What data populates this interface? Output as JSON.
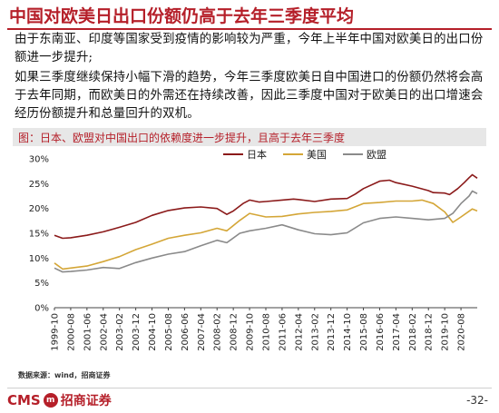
{
  "slide": {
    "title": "中国对欧美日出口份额仍高于去年三季度平均",
    "paragraph1": "由于东南亚、印度等国家受到疫情的影响较为严重，今年上半年中国对欧美日的出口份额进一步提升;",
    "paragraph2": "如果三季度继续保持小幅下滑的趋势，今年三季度欧美日自中国进口的份额仍然将会高于去年同期，而欧美日的外需还在持续改善，因此三季度中国对于欧美日的出口增速会经历份额提升和总量回升的双机。",
    "caption": "图：日本、欧盟对中国出口的依赖度进一步提升，且高于去年三季度",
    "source": "数据来源：wind，招商证券",
    "page_number": "-32-",
    "logo_latin": "CMS",
    "logo_mark": "m",
    "logo_cn": "招商证券"
  },
  "colors": {
    "brand": "#b51f29",
    "japan": "#8b1a1a",
    "usa": "#d4a637",
    "eu": "#8a8a8a"
  },
  "chart_data": {
    "type": "line",
    "title": "",
    "xlabel": "",
    "ylabel": "",
    "ylim": [
      0,
      0.3
    ],
    "y_ticks": [
      "0%",
      "5%",
      "10%",
      "15%",
      "20%",
      "25%",
      "30%"
    ],
    "x_range": [
      "1999-10",
      "2021-06"
    ],
    "x_ticks": [
      "1999-10",
      "2000-08",
      "2001-06",
      "2002-04",
      "2003-02",
      "2003-12",
      "2004-10",
      "2005-08",
      "2006-06",
      "2007-04",
      "2008-02",
      "2008-12",
      "2009-10",
      "2010-08",
      "2011-06",
      "2012-04",
      "2013-02",
      "2013-12",
      "2014-10",
      "2015-08",
      "2016-06",
      "2017-04",
      "2018-02",
      "2018-12",
      "2019-10",
      "2020-08"
    ],
    "legend_position": "top-right",
    "grid": false,
    "series": [
      {
        "name": "日本",
        "color": "#8b1a1a",
        "points": [
          [
            "1999-10",
            0.146
          ],
          [
            "2000-03",
            0.14
          ],
          [
            "2000-08",
            0.141
          ],
          [
            "2001-06",
            0.146
          ],
          [
            "2002-04",
            0.153
          ],
          [
            "2003-02",
            0.162
          ],
          [
            "2003-12",
            0.172
          ],
          [
            "2004-10",
            0.186
          ],
          [
            "2005-08",
            0.196
          ],
          [
            "2006-06",
            0.201
          ],
          [
            "2007-04",
            0.203
          ],
          [
            "2008-02",
            0.2
          ],
          [
            "2008-08",
            0.188
          ],
          [
            "2008-12",
            0.195
          ],
          [
            "2009-06",
            0.21
          ],
          [
            "2009-10",
            0.217
          ],
          [
            "2010-04",
            0.213
          ],
          [
            "2010-08",
            0.214
          ],
          [
            "2011-06",
            0.217
          ],
          [
            "2012-01",
            0.219
          ],
          [
            "2012-04",
            0.218
          ],
          [
            "2013-02",
            0.214
          ],
          [
            "2013-12",
            0.219
          ],
          [
            "2014-10",
            0.22
          ],
          [
            "2015-03",
            0.229
          ],
          [
            "2015-08",
            0.24
          ],
          [
            "2016-06",
            0.255
          ],
          [
            "2016-12",
            0.257
          ],
          [
            "2017-04",
            0.252
          ],
          [
            "2018-02",
            0.245
          ],
          [
            "2018-12",
            0.236
          ],
          [
            "2019-03",
            0.232
          ],
          [
            "2019-10",
            0.231
          ],
          [
            "2020-01",
            0.228
          ],
          [
            "2020-06",
            0.24
          ],
          [
            "2020-10",
            0.252
          ],
          [
            "2021-01",
            0.262
          ],
          [
            "2021-03",
            0.268
          ],
          [
            "2021-06",
            0.261
          ]
        ]
      },
      {
        "name": "美国",
        "color": "#d4a637",
        "points": [
          [
            "1999-10",
            0.09
          ],
          [
            "2000-03",
            0.078
          ],
          [
            "2000-08",
            0.08
          ],
          [
            "2001-06",
            0.084
          ],
          [
            "2002-04",
            0.093
          ],
          [
            "2003-02",
            0.103
          ],
          [
            "2003-12",
            0.117
          ],
          [
            "2004-10",
            0.128
          ],
          [
            "2005-08",
            0.14
          ],
          [
            "2006-06",
            0.146
          ],
          [
            "2007-04",
            0.151
          ],
          [
            "2008-02",
            0.16
          ],
          [
            "2008-08",
            0.155
          ],
          [
            "2009-04",
            0.176
          ],
          [
            "2009-10",
            0.19
          ],
          [
            "2010-08",
            0.183
          ],
          [
            "2011-06",
            0.184
          ],
          [
            "2012-04",
            0.189
          ],
          [
            "2013-02",
            0.192
          ],
          [
            "2013-12",
            0.194
          ],
          [
            "2014-10",
            0.197
          ],
          [
            "2015-08",
            0.21
          ],
          [
            "2016-06",
            0.212
          ],
          [
            "2017-04",
            0.215
          ],
          [
            "2018-02",
            0.215
          ],
          [
            "2018-08",
            0.217
          ],
          [
            "2019-03",
            0.21
          ],
          [
            "2019-10",
            0.193
          ],
          [
            "2020-03",
            0.172
          ],
          [
            "2020-08",
            0.183
          ],
          [
            "2021-03",
            0.199
          ],
          [
            "2021-06",
            0.195
          ]
        ]
      },
      {
        "name": "欧盟",
        "color": "#8a8a8a",
        "points": [
          [
            "1999-10",
            0.08
          ],
          [
            "2000-03",
            0.072
          ],
          [
            "2000-08",
            0.073
          ],
          [
            "2001-06",
            0.076
          ],
          [
            "2002-04",
            0.081
          ],
          [
            "2003-02",
            0.079
          ],
          [
            "2003-12",
            0.091
          ],
          [
            "2004-10",
            0.1
          ],
          [
            "2005-08",
            0.108
          ],
          [
            "2006-06",
            0.113
          ],
          [
            "2007-04",
            0.125
          ],
          [
            "2008-02",
            0.136
          ],
          [
            "2008-08",
            0.131
          ],
          [
            "2009-04",
            0.15
          ],
          [
            "2009-10",
            0.155
          ],
          [
            "2010-08",
            0.16
          ],
          [
            "2011-06",
            0.167
          ],
          [
            "2012-04",
            0.157
          ],
          [
            "2013-02",
            0.149
          ],
          [
            "2013-12",
            0.147
          ],
          [
            "2014-10",
            0.151
          ],
          [
            "2015-08",
            0.171
          ],
          [
            "2016-06",
            0.18
          ],
          [
            "2017-04",
            0.183
          ],
          [
            "2018-02",
            0.18
          ],
          [
            "2018-12",
            0.177
          ],
          [
            "2019-10",
            0.18
          ],
          [
            "2020-03",
            0.19
          ],
          [
            "2020-08",
            0.21
          ],
          [
            "2021-01",
            0.225
          ],
          [
            "2021-03",
            0.235
          ],
          [
            "2021-06",
            0.23
          ]
        ]
      }
    ]
  }
}
